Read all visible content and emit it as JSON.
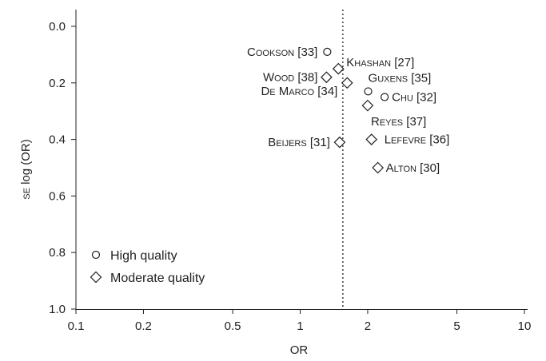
{
  "chart_data": {
    "type": "scatter",
    "xlabel": "OR",
    "ylabel": "SE log (OR)",
    "xscale": "log",
    "xlim": [
      0.1,
      10
    ],
    "ylim": [
      0.0,
      1.0
    ],
    "y_inverted": true,
    "x_ticks": [
      0.1,
      0.2,
      0.5,
      1,
      2,
      5,
      10
    ],
    "x_tick_labels": [
      "0.1",
      "0.2",
      "0.5",
      "1",
      "2",
      "5",
      "10"
    ],
    "y_ticks": [
      0.0,
      0.2,
      0.4,
      0.6,
      0.8,
      1.0
    ],
    "y_tick_labels": [
      "0.0",
      "0.2",
      "0.4",
      "0.6",
      "0.8",
      "1.0"
    ],
    "grid": false,
    "reference_line": {
      "x": 1.55,
      "style": "dotted"
    },
    "legend": {
      "placement": "bottom-left",
      "entries": [
        {
          "label": "High quality",
          "marker": "circle"
        },
        {
          "label": "Moderate quality",
          "marker": "diamond"
        }
      ]
    },
    "series": [
      {
        "name": "High quality",
        "marker": "circle",
        "points": [
          {
            "label": "Cookson [33]",
            "x": 1.32,
            "y": 0.09
          },
          {
            "label": "Guxens [35]",
            "x": 2.01,
            "y": 0.23
          },
          {
            "label": "Chu [32]",
            "x": 2.38,
            "y": 0.25
          }
        ]
      },
      {
        "name": "Moderate quality",
        "marker": "diamond",
        "points": [
          {
            "label": "Khashan [27]",
            "x": 1.48,
            "y": 0.15
          },
          {
            "label": "Wood [38]",
            "x": 1.31,
            "y": 0.18
          },
          {
            "label": "De Marco [34]",
            "x": 1.62,
            "y": 0.2
          },
          {
            "label": "Reyes [37]",
            "x": 2.0,
            "y": 0.28
          },
          {
            "label": "Beijers [31]",
            "x": 1.5,
            "y": 0.41
          },
          {
            "label": "Lefevre [36]",
            "x": 2.08,
            "y": 0.4
          },
          {
            "label": "Alton [30]",
            "x": 2.22,
            "y": 0.5
          }
        ]
      }
    ]
  }
}
